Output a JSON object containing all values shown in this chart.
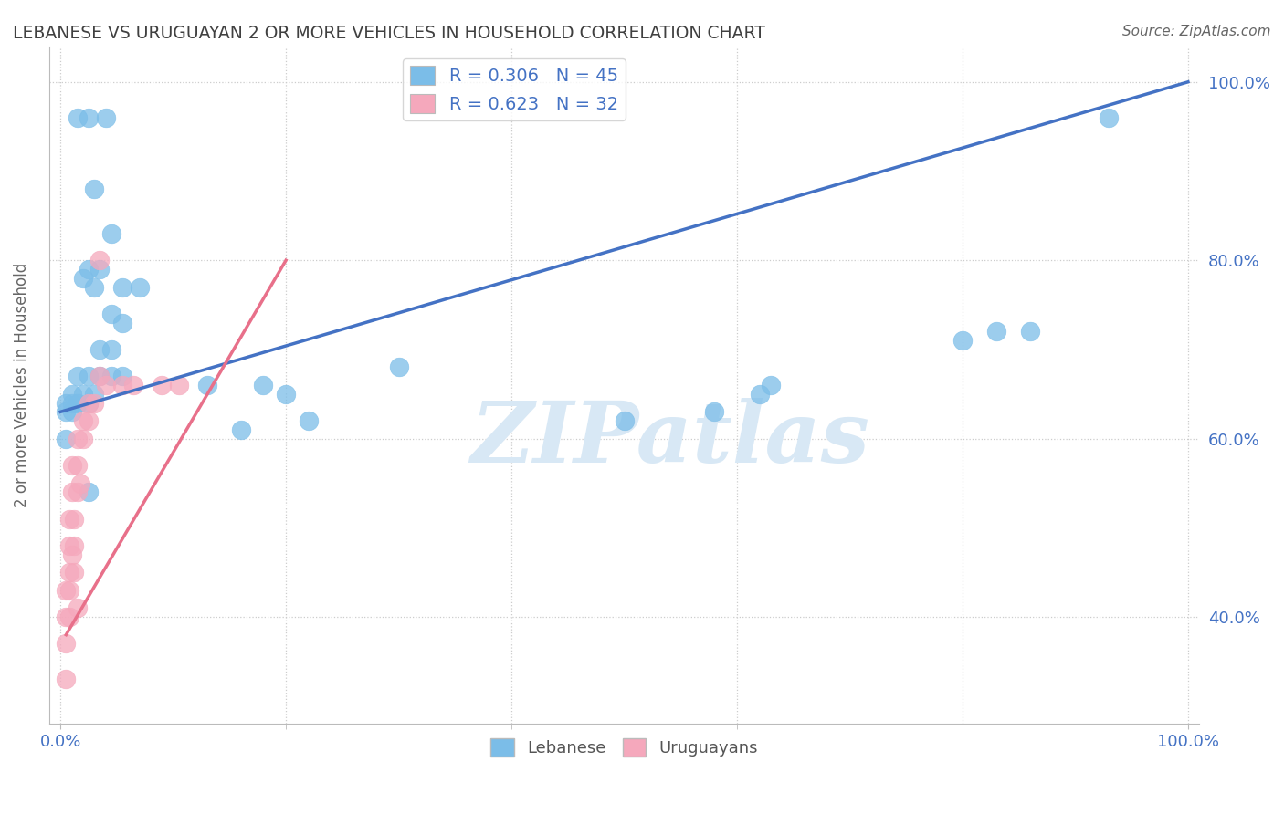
{
  "title": "LEBANESE VS URUGUAYAN 2 OR MORE VEHICLES IN HOUSEHOLD CORRELATION CHART",
  "source": "Source: ZipAtlas.com",
  "ylabel": "2 or more Vehicles in Household",
  "legend_blue": "R = 0.306   N = 45",
  "legend_pink": "R = 0.623   N = 32",
  "watermark": "ZIPatlas",
  "blue_pts": [
    [
      1.5,
      96
    ],
    [
      2.5,
      96
    ],
    [
      4.0,
      96
    ],
    [
      3.0,
      88
    ],
    [
      4.5,
      83
    ],
    [
      2.5,
      79
    ],
    [
      3.5,
      79
    ],
    [
      5.5,
      77
    ],
    [
      7.0,
      77
    ],
    [
      4.5,
      74
    ],
    [
      5.5,
      73
    ],
    [
      3.5,
      70
    ],
    [
      4.5,
      70
    ],
    [
      2.0,
      78
    ],
    [
      3.0,
      77
    ],
    [
      1.5,
      67
    ],
    [
      2.5,
      67
    ],
    [
      3.5,
      67
    ],
    [
      4.5,
      67
    ],
    [
      5.5,
      67
    ],
    [
      1.0,
      65
    ],
    [
      2.0,
      65
    ],
    [
      3.0,
      65
    ],
    [
      0.5,
      64
    ],
    [
      1.0,
      64
    ],
    [
      1.5,
      64
    ],
    [
      2.5,
      64
    ],
    [
      0.5,
      63
    ],
    [
      1.0,
      63
    ],
    [
      13.0,
      66
    ],
    [
      18.0,
      66
    ],
    [
      20.0,
      65
    ],
    [
      30.0,
      68
    ],
    [
      50.0,
      62
    ],
    [
      58.0,
      63
    ],
    [
      62.0,
      65
    ],
    [
      63.0,
      66
    ],
    [
      80.0,
      71
    ],
    [
      83.0,
      72
    ],
    [
      86.0,
      72
    ],
    [
      93.0,
      96
    ],
    [
      0.5,
      60
    ],
    [
      2.5,
      54
    ],
    [
      16.0,
      61
    ],
    [
      22.0,
      62
    ]
  ],
  "pink_pts": [
    [
      3.5,
      80
    ],
    [
      3.5,
      67
    ],
    [
      4.0,
      66
    ],
    [
      5.5,
      66
    ],
    [
      6.5,
      66
    ],
    [
      9.0,
      66
    ],
    [
      10.5,
      66
    ],
    [
      2.5,
      64
    ],
    [
      3.0,
      64
    ],
    [
      2.0,
      62
    ],
    [
      2.5,
      62
    ],
    [
      1.5,
      60
    ],
    [
      2.0,
      60
    ],
    [
      1.0,
      57
    ],
    [
      1.5,
      57
    ],
    [
      1.0,
      54
    ],
    [
      1.5,
      54
    ],
    [
      0.8,
      51
    ],
    [
      1.2,
      51
    ],
    [
      0.8,
      48
    ],
    [
      1.2,
      48
    ],
    [
      0.8,
      45
    ],
    [
      1.2,
      45
    ],
    [
      0.5,
      43
    ],
    [
      0.8,
      43
    ],
    [
      0.5,
      40
    ],
    [
      0.8,
      40
    ],
    [
      0.5,
      37
    ],
    [
      0.5,
      33
    ],
    [
      1.5,
      41
    ],
    [
      1.0,
      47
    ],
    [
      1.8,
      55
    ]
  ],
  "blue_line": [
    [
      0,
      63
    ],
    [
      100,
      100
    ]
  ],
  "pink_line": [
    [
      0.5,
      38
    ],
    [
      20,
      80
    ]
  ],
  "blue_color": "#7BBDE8",
  "pink_color": "#F5A8BC",
  "blue_line_color": "#4472C4",
  "pink_line_color": "#E8708A",
  "bg_color": "#FFFFFF",
  "grid_color": "#CCCCCC",
  "title_color": "#404040",
  "axis_tick_color": "#4472C4",
  "ylabel_color": "#666666",
  "watermark_color": "#D8E8F5",
  "source_color": "#666666",
  "xlim": [
    0,
    100
  ],
  "ylim": [
    28,
    104
  ],
  "yticks": [
    40,
    60,
    80,
    100
  ],
  "ytick_labels": [
    "40.0%",
    "60.0%",
    "80.0%",
    "100.0%"
  ],
  "xtick_labels": [
    "0.0%",
    "100.0%"
  ],
  "minor_xticks": [
    20,
    40,
    60,
    80
  ]
}
